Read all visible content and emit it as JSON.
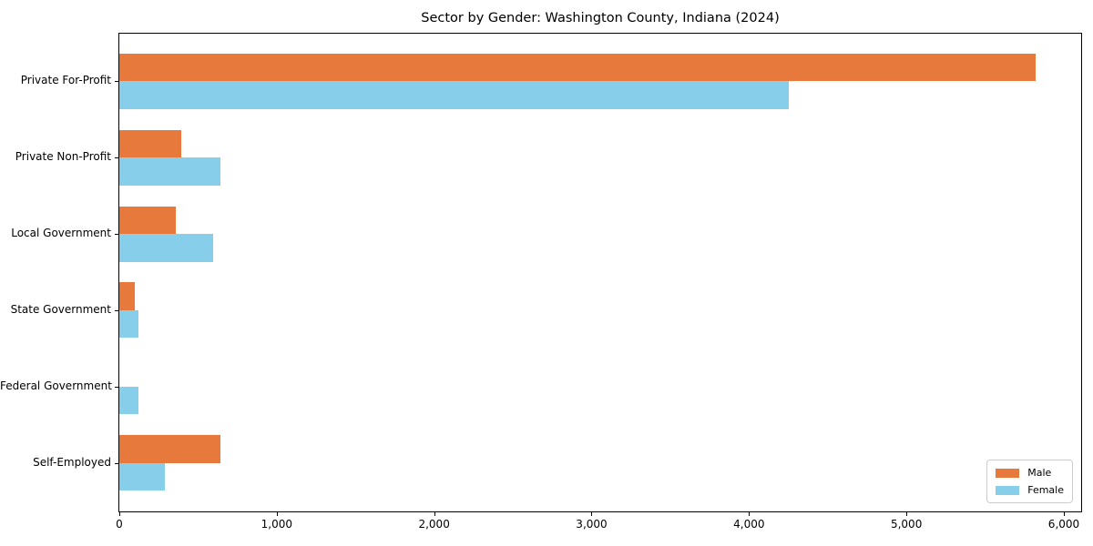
{
  "figure": {
    "background": "#ffffff"
  },
  "chart_data": {
    "type": "bar",
    "orientation": "horizontal",
    "title": "Sector by Gender: Washington County, Indiana (2024)",
    "categories": [
      "Private For-Profit",
      "Private Non-Profit",
      "Local Government",
      "State Government",
      "Federal Government",
      "Self-Employed"
    ],
    "series": [
      {
        "name": "Male",
        "color": "#e8793c",
        "values": [
          5820,
          395,
          360,
          100,
          0,
          640
        ]
      },
      {
        "name": "Female",
        "color": "#87ceeb",
        "values": [
          4255,
          640,
          595,
          120,
          120,
          290
        ]
      }
    ],
    "xlabel": "",
    "ylabel": "",
    "xlim": [
      0,
      6110
    ],
    "x_ticks": [
      0,
      1000,
      2000,
      3000,
      4000,
      5000,
      6000
    ],
    "x_tick_labels": [
      "0",
      "1,000",
      "2,000",
      "3,000",
      "4,000",
      "5,000",
      "6,000"
    ],
    "grid": false,
    "legend": {
      "position": "lower right",
      "entries": [
        "Male",
        "Female"
      ]
    }
  }
}
